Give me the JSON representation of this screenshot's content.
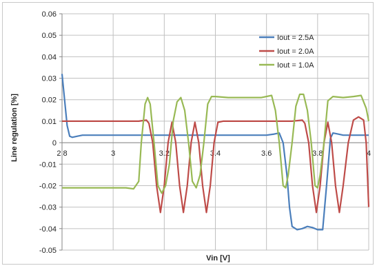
{
  "chart_data": {
    "type": "line",
    "xlabel": "Vin [V]",
    "ylabel": "Line regulation [%]",
    "xlim": [
      2.8,
      4.0
    ],
    "ylim": [
      -0.05,
      0.06
    ],
    "x_ticks": [
      "2.8",
      "3",
      "3.2",
      "3.4",
      "3.6",
      "3.8",
      "4"
    ],
    "y_ticks": [
      "0.06",
      "0.05",
      "0.04",
      "0.03",
      "0.02",
      "0.01",
      "0",
      "-0.01",
      "-0.02",
      "-0.03",
      "-0.04",
      "-0.05"
    ],
    "grid": true,
    "legend_position": "top-right",
    "series": [
      {
        "name": "Iout = 2.5A",
        "color": "#4a7ebb",
        "points": [
          [
            2.8,
            0.032
          ],
          [
            2.81,
            0.02
          ],
          [
            2.82,
            0.008
          ],
          [
            2.83,
            0.003
          ],
          [
            2.84,
            0.0025
          ],
          [
            2.86,
            0.003
          ],
          [
            2.88,
            0.0035
          ],
          [
            3.0,
            0.0035
          ],
          [
            3.2,
            0.0035
          ],
          [
            3.4,
            0.0035
          ],
          [
            3.6,
            0.0035
          ],
          [
            3.63,
            0.004
          ],
          [
            3.65,
            0.0045
          ],
          [
            3.665,
            0.0
          ],
          [
            3.68,
            -0.015
          ],
          [
            3.69,
            -0.03
          ],
          [
            3.7,
            -0.039
          ],
          [
            3.72,
            -0.0405
          ],
          [
            3.74,
            -0.04
          ],
          [
            3.76,
            -0.039
          ],
          [
            3.78,
            -0.0395
          ],
          [
            3.8,
            -0.0405
          ],
          [
            3.82,
            -0.0405
          ],
          [
            3.835,
            -0.02
          ],
          [
            3.85,
            0.002
          ],
          [
            3.86,
            0.0045
          ],
          [
            3.88,
            0.004
          ],
          [
            3.9,
            0.0035
          ],
          [
            4.0,
            0.0035
          ]
        ]
      },
      {
        "name": "Iout = 2.0A",
        "color": "#be4b48",
        "points": [
          [
            2.8,
            0.01
          ],
          [
            3.1,
            0.01
          ],
          [
            3.13,
            0.0105
          ],
          [
            3.14,
            0.009
          ],
          [
            3.155,
            0.0
          ],
          [
            3.17,
            -0.02
          ],
          [
            3.185,
            -0.0325
          ],
          [
            3.2,
            -0.02
          ],
          [
            3.215,
            0.0
          ],
          [
            3.23,
            0.0095
          ],
          [
            3.245,
            0.0
          ],
          [
            3.26,
            -0.02
          ],
          [
            3.275,
            -0.0325
          ],
          [
            3.29,
            -0.02
          ],
          [
            3.305,
            0.0
          ],
          [
            3.32,
            0.0095
          ],
          [
            3.335,
            0.0
          ],
          [
            3.35,
            -0.02
          ],
          [
            3.365,
            -0.0325
          ],
          [
            3.38,
            -0.02
          ],
          [
            3.395,
            0.0
          ],
          [
            3.41,
            0.0095
          ],
          [
            3.43,
            0.01
          ],
          [
            3.7,
            0.01
          ],
          [
            3.74,
            0.0105
          ],
          [
            3.75,
            0.009
          ],
          [
            3.765,
            0.0
          ],
          [
            3.78,
            -0.02
          ],
          [
            3.795,
            -0.0325
          ],
          [
            3.81,
            -0.02
          ],
          [
            3.825,
            0.0
          ],
          [
            3.84,
            0.0095
          ],
          [
            3.855,
            0.0
          ],
          [
            3.87,
            -0.02
          ],
          [
            3.885,
            -0.0325
          ],
          [
            3.9,
            -0.02
          ],
          [
            3.92,
            0.0
          ],
          [
            3.94,
            0.0105
          ],
          [
            3.96,
            0.012
          ],
          [
            3.98,
            0.0105
          ],
          [
            3.99,
            0.0
          ],
          [
            4.0,
            -0.03
          ]
        ]
      },
      {
        "name": "Iout = 1.0A",
        "color": "#98b954",
        "points": [
          [
            2.8,
            -0.021
          ],
          [
            3.05,
            -0.021
          ],
          [
            3.08,
            -0.0215
          ],
          [
            3.1,
            -0.018
          ],
          [
            3.11,
            0.0
          ],
          [
            3.125,
            0.018
          ],
          [
            3.135,
            0.021
          ],
          [
            3.145,
            0.018
          ],
          [
            3.16,
            0.0
          ],
          [
            3.175,
            -0.02
          ],
          [
            3.19,
            -0.0235
          ],
          [
            3.205,
            -0.02
          ],
          [
            3.22,
            -0.01
          ],
          [
            3.235,
            0.01
          ],
          [
            3.25,
            0.019
          ],
          [
            3.265,
            0.021
          ],
          [
            3.28,
            0.015
          ],
          [
            3.295,
            0.0
          ],
          [
            3.31,
            -0.018
          ],
          [
            3.325,
            -0.021
          ],
          [
            3.34,
            -0.015
          ],
          [
            3.355,
            0.0
          ],
          [
            3.37,
            0.018
          ],
          [
            3.385,
            0.0215
          ],
          [
            3.4,
            0.0215
          ],
          [
            3.45,
            0.021
          ],
          [
            3.58,
            0.021
          ],
          [
            3.62,
            0.022
          ],
          [
            3.635,
            0.015
          ],
          [
            3.65,
            0.0
          ],
          [
            3.665,
            -0.02
          ],
          [
            3.675,
            -0.021
          ],
          [
            3.685,
            -0.015
          ],
          [
            3.7,
            0.0
          ],
          [
            3.715,
            0.017
          ],
          [
            3.73,
            0.0225
          ],
          [
            3.745,
            0.0225
          ],
          [
            3.76,
            0.015
          ],
          [
            3.775,
            0.0
          ],
          [
            3.79,
            -0.02
          ],
          [
            3.8,
            -0.021
          ],
          [
            3.81,
            -0.015
          ],
          [
            3.825,
            0.0
          ],
          [
            3.84,
            0.0195
          ],
          [
            3.86,
            0.0215
          ],
          [
            3.9,
            0.021
          ],
          [
            3.94,
            0.0215
          ],
          [
            3.97,
            0.022
          ],
          [
            3.99,
            0.016
          ],
          [
            4.0,
            0.01
          ]
        ]
      }
    ]
  }
}
